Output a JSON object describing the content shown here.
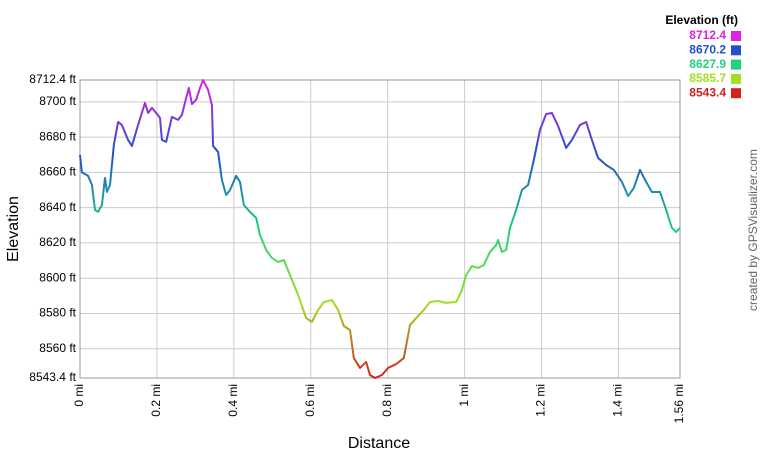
{
  "chart_data": {
    "type": "line",
    "y_label": "Elevation",
    "x_label": "Distance",
    "credit": "created by GPSVisualizer.com",
    "legend": {
      "title": "Elevation (ft)",
      "values": [
        8712.4,
        8670.2,
        8627.9,
        8585.7,
        8543.4
      ],
      "colors": [
        "#e020e0",
        "#2050d0",
        "#20d080",
        "#a0e020",
        "#d02020"
      ]
    },
    "xlim": [
      0,
      1.56
    ],
    "ylim": [
      8543.4,
      8712.4
    ],
    "xticks": [
      {
        "value": 0,
        "label": "0 mi"
      },
      {
        "value": 0.2,
        "label": "0.2 mi"
      },
      {
        "value": 0.4,
        "label": "0.4 mi"
      },
      {
        "value": 0.6,
        "label": "0.6 mi"
      },
      {
        "value": 0.8,
        "label": "0.8 mi"
      },
      {
        "value": 1,
        "label": "1 mi"
      },
      {
        "value": 1.2,
        "label": "1.2 mi"
      },
      {
        "value": 1.4,
        "label": "1.4 mi"
      },
      {
        "value": 1.56,
        "label": "1.56 mi"
      }
    ],
    "yticks": [
      {
        "value": 8543.4,
        "label": "8543.4 ft"
      },
      {
        "value": 8560,
        "label": "8560 ft"
      },
      {
        "value": 8580,
        "label": "8580 ft"
      },
      {
        "value": 8600,
        "label": "8600 ft"
      },
      {
        "value": 8620,
        "label": "8620 ft"
      },
      {
        "value": 8640,
        "label": "8640 ft"
      },
      {
        "value": 8660,
        "label": "8660 ft"
      },
      {
        "value": 8680,
        "label": "8680 ft"
      },
      {
        "value": 8700,
        "label": "8700 ft"
      },
      {
        "value": 8712.4,
        "label": "8712.4 ft"
      }
    ],
    "grid": true,
    "x": [
      0,
      0.005,
      0.021,
      0.031,
      0.039,
      0.047,
      0.057,
      0.065,
      0.07,
      0.078,
      0.088,
      0.099,
      0.109,
      0.125,
      0.135,
      0.151,
      0.169,
      0.177,
      0.187,
      0.198,
      0.208,
      0.213,
      0.224,
      0.239,
      0.255,
      0.265,
      0.276,
      0.283,
      0.291,
      0.302,
      0.312,
      0.32,
      0.333,
      0.343,
      0.346,
      0.359,
      0.369,
      0.38,
      0.39,
      0.406,
      0.416,
      0.426,
      0.442,
      0.458,
      0.468,
      0.484,
      0.499,
      0.515,
      0.53,
      0.546,
      0.567,
      0.588,
      0.603,
      0.619,
      0.634,
      0.655,
      0.671,
      0.686,
      0.702,
      0.712,
      0.728,
      0.744,
      0.754,
      0.767,
      0.785,
      0.801,
      0.822,
      0.842,
      0.858,
      0.879,
      0.894,
      0.91,
      0.931,
      0.952,
      0.978,
      0.993,
      1.004,
      1.019,
      1.035,
      1.05,
      1.066,
      1.082,
      1.087,
      1.097,
      1.108,
      1.118,
      1.134,
      1.149,
      1.165,
      1.18,
      1.196,
      1.212,
      1.227,
      1.243,
      1.264,
      1.279,
      1.3,
      1.316,
      1.331,
      1.347,
      1.368,
      1.388,
      1.409,
      1.425,
      1.44,
      1.456,
      1.472,
      1.487,
      1.508,
      1.524,
      1.539,
      1.55,
      1.56
    ],
    "values": [
      8669.9,
      8660,
      8658,
      8653,
      8638.7,
      8637.6,
      8641.5,
      8656.8,
      8648.9,
      8652.9,
      8675.6,
      8688.6,
      8686.9,
      8678.4,
      8675,
      8686.9,
      8699.4,
      8693.7,
      8696.6,
      8693.7,
      8690.9,
      8678.4,
      8677.3,
      8691.5,
      8689.8,
      8692.6,
      8702.2,
      8707.9,
      8698.8,
      8701.1,
      8707.9,
      8712.4,
      8706.8,
      8698.2,
      8675,
      8671.6,
      8655.7,
      8647.2,
      8650,
      8658,
      8654.6,
      8641.5,
      8637.6,
      8634.2,
      8624.5,
      8616,
      8611.5,
      8609.2,
      8610.3,
      8601.8,
      8590.5,
      8577.4,
      8575.2,
      8582,
      8586.5,
      8587.6,
      8582,
      8572.9,
      8570.6,
      8554.7,
      8549.1,
      8552.5,
      8545.1,
      8543.4,
      8545.1,
      8549.1,
      8551.3,
      8554.7,
      8573.5,
      8578.6,
      8582,
      8586.5,
      8587.1,
      8586,
      8586.5,
      8593.3,
      8601.8,
      8606.9,
      8605.8,
      8607.5,
      8614.9,
      8618.8,
      8621.7,
      8614.9,
      8616,
      8628.5,
      8638.7,
      8650,
      8652.9,
      8667.1,
      8684.1,
      8693.1,
      8693.7,
      8686.3,
      8673.9,
      8678.4,
      8686.9,
      8688.6,
      8678.4,
      8668.2,
      8664.2,
      8661.4,
      8654.6,
      8646.6,
      8651.2,
      8661.4,
      8654.6,
      8648.9,
      8648.9,
      8638.7,
      8628.5,
      8626.2,
      8628.5
    ]
  }
}
